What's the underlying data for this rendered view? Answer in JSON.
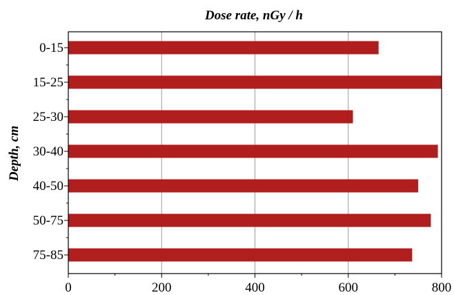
{
  "chart_data": {
    "type": "bar",
    "orientation": "horizontal",
    "title": "Dose rate, nGy / h",
    "xlabel": "",
    "ylabel": "Depth, cm",
    "categories": [
      "0-15",
      "15-25",
      "25-30",
      "30-40",
      "40-50",
      "50-75",
      "75-85"
    ],
    "values": [
      665,
      800,
      610,
      792,
      750,
      777,
      737
    ],
    "xlim": [
      0,
      800
    ],
    "xticks": [
      0,
      200,
      400,
      600,
      800
    ],
    "grid": "vertical",
    "legend": "none",
    "bar_color": "#b01e1e"
  }
}
